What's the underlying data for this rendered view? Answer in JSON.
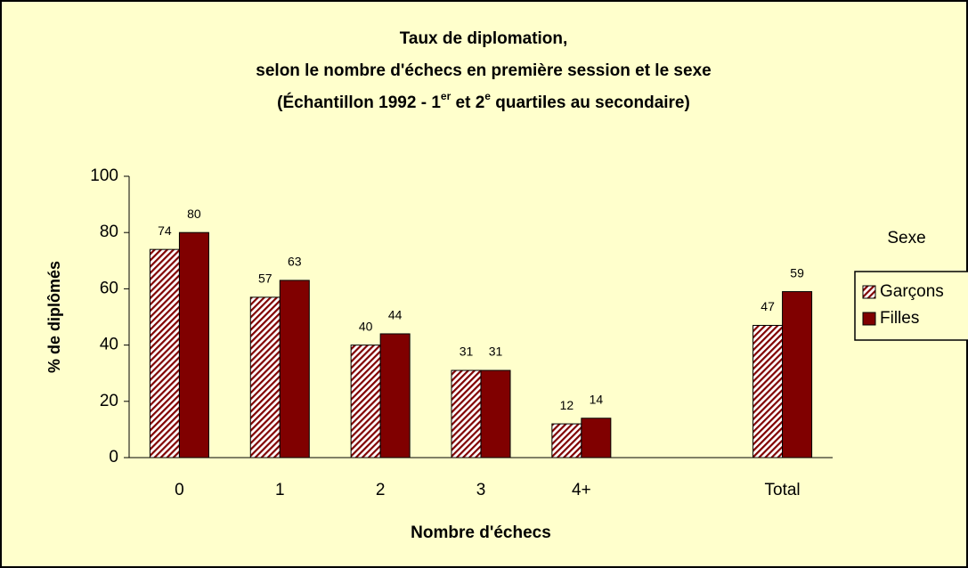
{
  "chart_data": {
    "type": "bar",
    "title": [
      "Taux de diplomation,",
      "selon le nombre d'échecs en première session et le sexe",
      [
        "(Échantillon 1992 - 1",
        "er",
        " et 2",
        "e",
        " quartiles au secondaire)"
      ]
    ],
    "x_label": "Nombre d'échecs",
    "y_label": "% de diplômés",
    "categories": [
      "0",
      "1",
      "2",
      "3",
      "4+",
      null,
      "Total"
    ],
    "series": [
      {
        "name": "Garçons",
        "color": "#800000",
        "pattern": "diagonal",
        "values": [
          74,
          57,
          40,
          31,
          12,
          null,
          47
        ]
      },
      {
        "name": "Filles",
        "color": "#800000",
        "values": [
          80,
          63,
          44,
          31,
          14,
          null,
          59
        ]
      }
    ],
    "legend_title": "Sexe",
    "legend": "right",
    "ylim": [
      0,
      100
    ],
    "yticks": [
      0,
      20,
      40,
      60,
      80,
      100
    ],
    "grid": false
  }
}
